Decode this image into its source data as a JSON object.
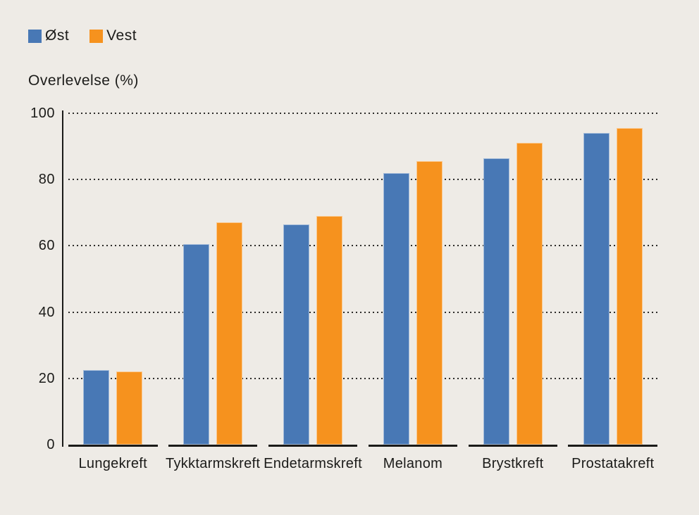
{
  "legend": {
    "items": [
      {
        "label": "Øst",
        "color": "#4878b5"
      },
      {
        "label": "Vest",
        "color": "#f6921e"
      }
    ]
  },
  "chart_data": {
    "type": "bar",
    "title": "Overlevelse (%)",
    "categories": [
      "Lungekreft",
      "Tykktarmskreft",
      "Endetarmskreft",
      "Melanom",
      "Brystkreft",
      "Prostatakreft"
    ],
    "series": [
      {
        "name": "Øst",
        "color": "#4878b5",
        "values": [
          22.5,
          60.5,
          66.5,
          82.0,
          86.5,
          94.0
        ]
      },
      {
        "name": "Vest",
        "color": "#f6921e",
        "values": [
          22.0,
          67.0,
          69.0,
          85.5,
          91.0,
          95.5
        ]
      }
    ],
    "ylabel": "Overlevelse (%)",
    "ylim": [
      0,
      100
    ],
    "yticks": [
      0,
      20,
      40,
      60,
      80,
      100
    ],
    "gridlines": "horizontal-dotted",
    "legend_position": "top-left",
    "colors": {
      "background": "#eeebe6",
      "axis": "#1a1a18",
      "text": "#1b1b19"
    }
  }
}
